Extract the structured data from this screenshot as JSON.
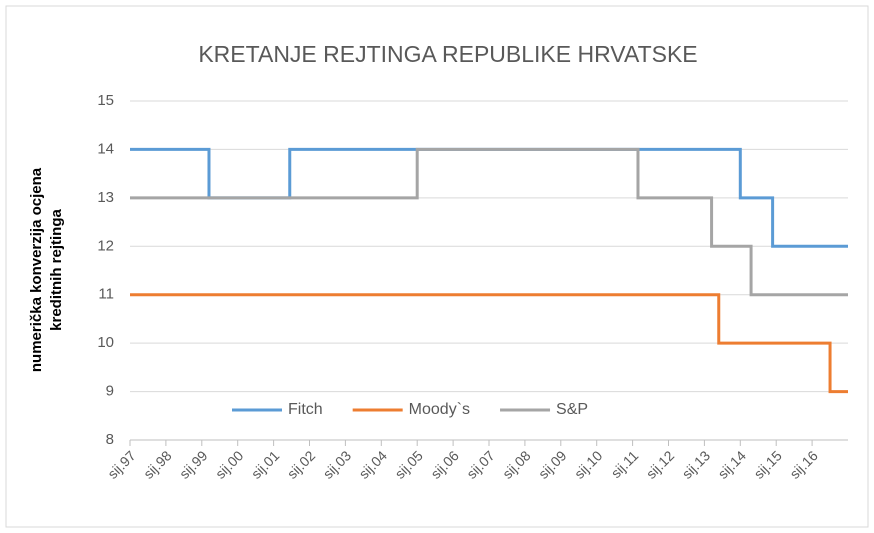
{
  "chart_data": {
    "type": "line",
    "title": "KRETANJE REJTINGA REPUBLIKE HRVATSKE",
    "ylabel": [
      "numerička konverzija ocjena",
      "kreditnih rejtinga"
    ],
    "xlim": [
      1997,
      2017
    ],
    "xticks": [
      {
        "value": 1997,
        "label": "sij.97"
      },
      {
        "value": 1998,
        "label": "sij.98"
      },
      {
        "value": 1999,
        "label": "sij.99"
      },
      {
        "value": 2000,
        "label": "sij.00"
      },
      {
        "value": 2001,
        "label": "sij.01"
      },
      {
        "value": 2002,
        "label": "sij.02"
      },
      {
        "value": 2003,
        "label": "sij.03"
      },
      {
        "value": 2004,
        "label": "sij.04"
      },
      {
        "value": 2005,
        "label": "sij.05"
      },
      {
        "value": 2006,
        "label": "sij.06"
      },
      {
        "value": 2007,
        "label": "sij.07"
      },
      {
        "value": 2008,
        "label": "sij.08"
      },
      {
        "value": 2009,
        "label": "sij.09"
      },
      {
        "value": 2010,
        "label": "sij.10"
      },
      {
        "value": 2011,
        "label": "sij.11"
      },
      {
        "value": 2012,
        "label": "sij.12"
      },
      {
        "value": 2013,
        "label": "sij.13"
      },
      {
        "value": 2014,
        "label": "sij.14"
      },
      {
        "value": 2015,
        "label": "sij.15"
      },
      {
        "value": 2016,
        "label": "sij.16"
      }
    ],
    "ylim": [
      8,
      15
    ],
    "yticks": [
      8,
      9,
      10,
      11,
      12,
      13,
      14,
      15
    ],
    "grid": true,
    "legend": "bottom",
    "series": [
      {
        "name": "Fitch",
        "color": "#5b9bd5",
        "x": [
          1997,
          1999.2,
          1999.2,
          2001.45,
          2001.45,
          2014.0,
          2014.0,
          2014.9,
          2014.9,
          2017
        ],
        "values": [
          14,
          14,
          13,
          13,
          14,
          14,
          13,
          13,
          12,
          12
        ]
      },
      {
        "name": "Moody`s",
        "color": "#ed7d31",
        "x": [
          1997,
          2013.4,
          2013.4,
          2016.5,
          2016.5,
          2017
        ],
        "values": [
          11,
          11,
          10,
          10,
          9,
          9
        ]
      },
      {
        "name": "S&P",
        "color": "#a5a5a5",
        "x": [
          1997,
          2005.0,
          2005.0,
          2011.15,
          2011.15,
          2013.2,
          2013.2,
          2014.3,
          2014.3,
          2017
        ],
        "values": [
          13,
          13,
          14,
          14,
          13,
          13,
          12,
          12,
          11,
          11
        ]
      }
    ]
  }
}
